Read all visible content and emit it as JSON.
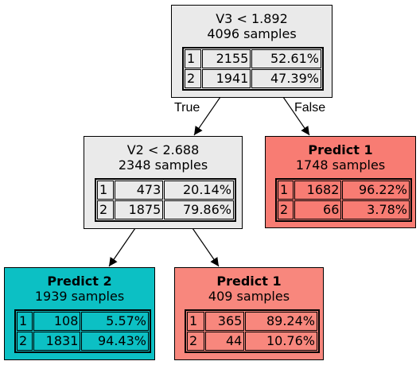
{
  "colors": {
    "split_node": "#eaeaea",
    "predict_1": "#f87c73",
    "predict_1_light": "#f8877d",
    "predict_2": "#0cc0c4",
    "border": "#000000"
  },
  "edge_labels": {
    "true_label": "True",
    "false_label": "False"
  },
  "nodes": {
    "root": {
      "title": "V3 < 1.892",
      "samples": "4096 samples",
      "rows": [
        {
          "cls": "1",
          "count": "2155",
          "pct": "52.61%"
        },
        {
          "cls": "2",
          "count": "1941",
          "pct": "47.39%"
        }
      ]
    },
    "left": {
      "title": "V2 < 2.688",
      "samples": "2348 samples",
      "rows": [
        {
          "cls": "1",
          "count": "473",
          "pct": "20.14%"
        },
        {
          "cls": "2",
          "count": "1875",
          "pct": "79.86%"
        }
      ]
    },
    "right": {
      "title": "Predict 1",
      "samples": "1748 samples",
      "rows": [
        {
          "cls": "1",
          "count": "1682",
          "pct": "96.22%"
        },
        {
          "cls": "2",
          "count": "66",
          "pct": "3.78%"
        }
      ]
    },
    "left_left": {
      "title": "Predict 2",
      "samples": "1939 samples",
      "rows": [
        {
          "cls": "1",
          "count": "108",
          "pct": "5.57%"
        },
        {
          "cls": "2",
          "count": "1831",
          "pct": "94.43%"
        }
      ]
    },
    "left_right": {
      "title": "Predict 1",
      "samples": "409 samples",
      "rows": [
        {
          "cls": "1",
          "count": "365",
          "pct": "89.24%"
        },
        {
          "cls": "2",
          "count": "44",
          "pct": "10.76%"
        }
      ]
    }
  }
}
